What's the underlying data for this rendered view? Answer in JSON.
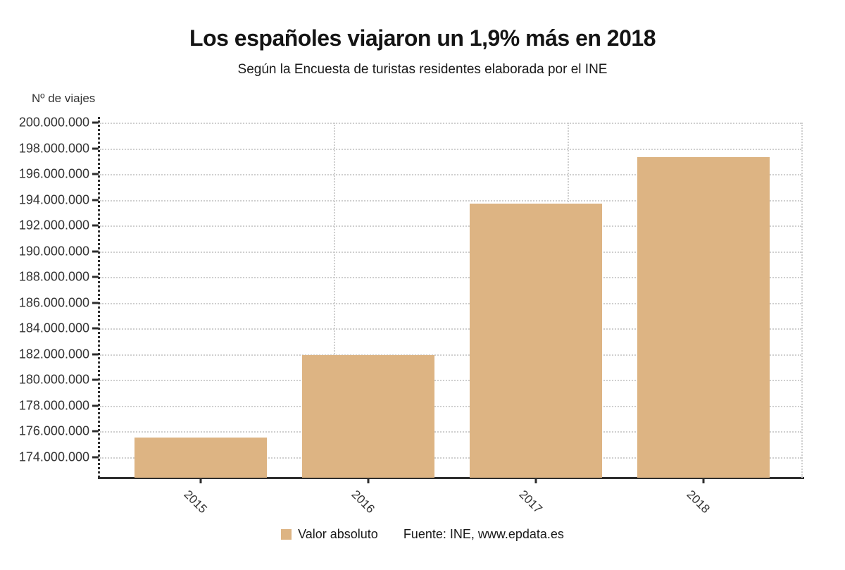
{
  "page": {
    "title": "Los españoles viajaron un 1,9% más en 2018",
    "subtitle": "Según la Encuesta de turistas residentes elaborada por el INE"
  },
  "legend": {
    "label": "Valor absoluto"
  },
  "source": "Fuente: INE, www.epdata.es",
  "colors": {
    "bar": "#ddb483",
    "grid": "#cfcfcf",
    "axis": "#2e2e2e",
    "text": "#333333",
    "title": "#141414"
  },
  "chart_data": {
    "type": "bar",
    "title": "Los españoles viajaron un 1,9% más en 2018",
    "subtitle": "Según la Encuesta de turistas residentes elaborada por el INE",
    "ylabel": "Nº de viajes",
    "xlabel": "",
    "categories": [
      "2015",
      "2016",
      "2017",
      "2018"
    ],
    "series": [
      {
        "name": "Valor absoluto",
        "values": [
          175500000,
          181950000,
          193700000,
          197300000
        ]
      }
    ],
    "ylim": [
      172400000,
      200000000
    ],
    "yticks": [
      174000000,
      176000000,
      178000000,
      180000000,
      182000000,
      184000000,
      186000000,
      188000000,
      190000000,
      192000000,
      194000000,
      196000000,
      198000000,
      200000000
    ],
    "ytick_labels": [
      "174.000.000",
      "176.000.000",
      "178.000.000",
      "180.000.000",
      "182.000.000",
      "184.000.000",
      "186.000.000",
      "188.000.000",
      "190.000.000",
      "192.000.000",
      "194.000.000",
      "196.000.000",
      "198.000.000",
      "200.000.000"
    ],
    "grid": true,
    "gridline_style": "dotted",
    "legend_position": "bottom",
    "source": "Fuente: INE, www.epdata.es"
  }
}
